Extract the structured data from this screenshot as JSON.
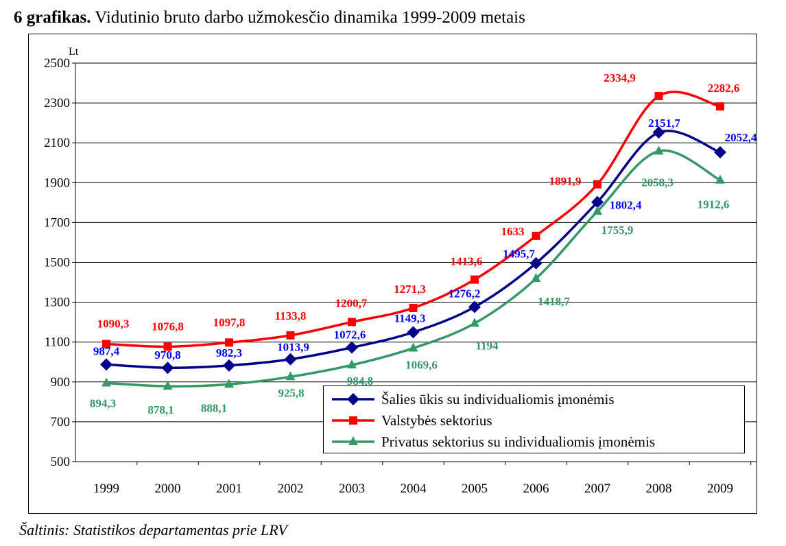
{
  "title": {
    "bold": "6 grafikas.",
    "rest": " Vidutinio bruto darbo užmokesčio dinamika 1999-2009 metais"
  },
  "source": "Šaltinis: Statistikos departamentas prie LRV",
  "chart_data": {
    "type": "line",
    "title": "6 grafikas. Vidutinio bruto darbo užmokesčio dinamika 1999-2009 metais",
    "ylabel": "Lt",
    "xlabel": "",
    "ylim": [
      500,
      2500
    ],
    "yticks": [
      500,
      700,
      900,
      1100,
      1300,
      1500,
      1700,
      1900,
      2100,
      2300,
      2500
    ],
    "grid": true,
    "legend_position": "bottom-right",
    "categories": [
      "1999",
      "2000",
      "2001",
      "2002",
      "2003",
      "2004",
      "2005",
      "2006",
      "2007",
      "2008",
      "2009"
    ],
    "series": [
      {
        "name": "Šalies ūkis su individualiomis įmonėmis",
        "color": "#00008B",
        "marker": "diamond",
        "label_color": "#0000FF",
        "values": [
          987.4,
          970.8,
          982.3,
          1013.9,
          1072.6,
          1149.3,
          1276.2,
          1495.7,
          1802.4,
          2151.7,
          2052.4
        ],
        "labels": [
          "987,4",
          "970,8",
          "982,3",
          "1013,9",
          "1072,6",
          "1149,3",
          "1276,2",
          "1495,7",
          "1802,4",
          "2151,7",
          "2052,4"
        ]
      },
      {
        "name": "Valstybės sektorius",
        "color": "#FF0000",
        "marker": "square",
        "label_color": "#FF0000",
        "values": [
          1090.3,
          1076.8,
          1097.8,
          1133.8,
          1200.7,
          1271.3,
          1413.6,
          1633,
          1891.9,
          2334.9,
          2282.6
        ],
        "labels": [
          "1090,3",
          "1076,8",
          "1097,8",
          "1133,8",
          "1200,7",
          "1271,3",
          "1413,6",
          "1633",
          "1891,9",
          "2334,9",
          "2282,6"
        ]
      },
      {
        "name": "Privatus sektorius su individualiomis įmonėmis",
        "color": "#339966",
        "marker": "triangle",
        "label_color": "#339966",
        "values": [
          894.3,
          878.1,
          888.1,
          925.8,
          984.8,
          1069.6,
          1194,
          1418.7,
          1755.9,
          2058.3,
          1912.6
        ],
        "labels": [
          "894,3",
          "878,1",
          "888,1",
          "925,8",
          "984,8",
          "1069,6",
          "1194",
          "1418,7",
          "1755,9",
          "2058,3",
          "1912,6"
        ]
      }
    ]
  }
}
